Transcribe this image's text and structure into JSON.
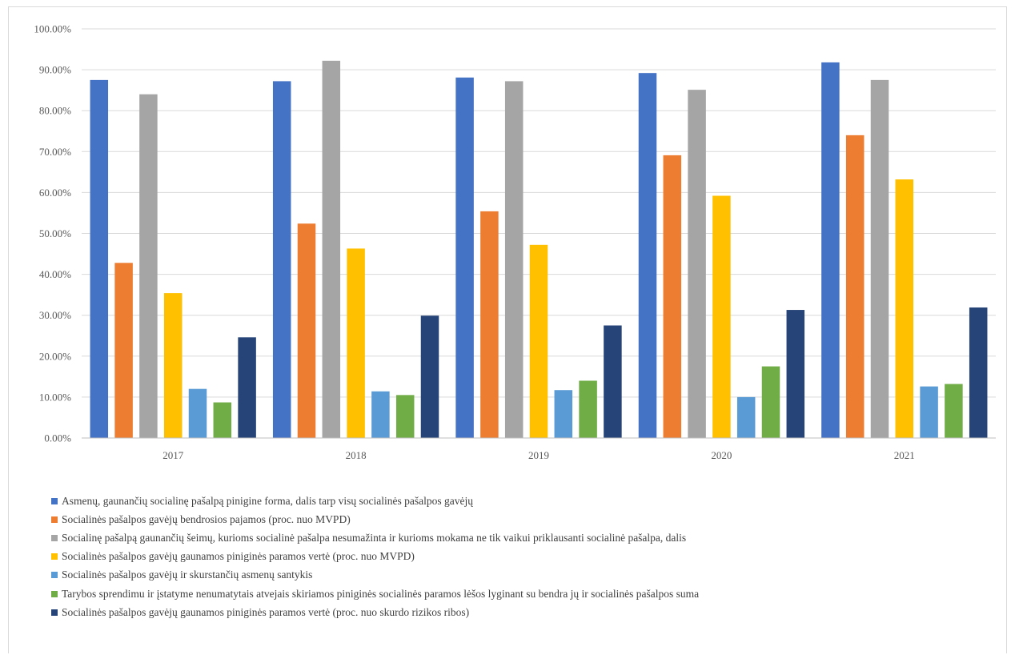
{
  "chart_data": {
    "type": "bar",
    "categories": [
      "2017",
      "2018",
      "2019",
      "2020",
      "2021"
    ],
    "ylim": [
      0,
      100
    ],
    "yticks": [
      "0.00%",
      "10.00%",
      "20.00%",
      "30.00%",
      "40.00%",
      "50.00%",
      "60.00%",
      "70.00%",
      "80.00%",
      "90.00%",
      "100.00%"
    ],
    "grid": true,
    "legend_position": "bottom",
    "series": [
      {
        "name": "Asmenų, gaunančių socialinę pašalpą pinigine forma, dalis tarp visų socialinės pašalpos gavėjų",
        "color": "#4472c4",
        "values": [
          87.5,
          87.2,
          88.1,
          89.2,
          91.8
        ]
      },
      {
        "name": "Socialinės pašalpos gavėjų bendrosios pajamos (proc. nuo MVPD)",
        "color": "#ed7d31",
        "values": [
          42.8,
          52.4,
          55.4,
          69.1,
          74.0
        ]
      },
      {
        "name": "Socialinę pašalpą gaunančių šeimų, kurioms socialinė pašalpa nesumažinta ir kurioms mokama ne tik vaikui priklausanti socialinė pašalpa, dalis",
        "color": "#a5a5a5",
        "values": [
          84.0,
          92.2,
          87.2,
          85.1,
          87.5
        ]
      },
      {
        "name": "Socialinės pašalpos gavėjų gaunamos piniginės paramos vertė (proc. nuo MVPD)",
        "color": "#ffc000",
        "values": [
          35.4,
          46.3,
          47.2,
          59.2,
          63.2
        ]
      },
      {
        "name": "Socialinės pašalpos gavėjų ir skurstančių asmenų santykis",
        "color": "#5b9bd5",
        "values": [
          12.0,
          11.4,
          11.7,
          10.0,
          12.6
        ]
      },
      {
        "name": "Tarybos sprendimu ir įstatyme nenumatytais atvejais skiriamos piniginės socialinės paramos lėšos lyginant su bendra jų ir socialinės pašalpos suma",
        "color": "#70ad47",
        "values": [
          8.7,
          10.5,
          14.0,
          17.5,
          13.2
        ]
      },
      {
        "name": "Socialinės pašalpos gavėjų gaunamos piniginės paramos vertė (proc. nuo skurdo rizikos ribos)",
        "color": "#264478",
        "values": [
          24.6,
          29.9,
          27.5,
          31.3,
          31.9
        ]
      }
    ]
  }
}
